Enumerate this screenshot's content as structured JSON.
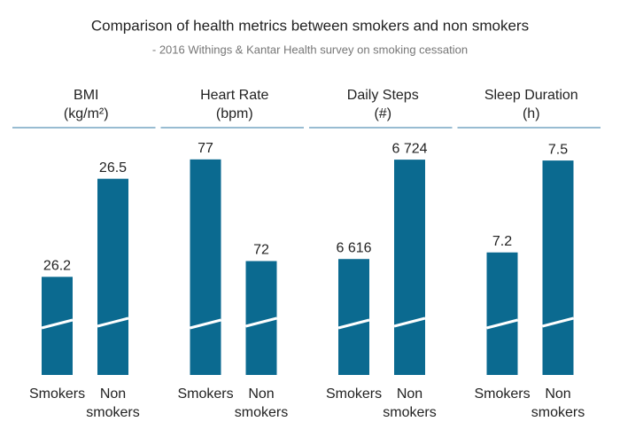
{
  "title": "Comparison of health metrics between smokers and non smokers",
  "subtitle": "- 2016 Withings & Kantar Health survey on smoking cessation",
  "chart_data": [
    {
      "type": "bar",
      "title": "BMI",
      "subtitle": "(kg/m²)",
      "categories": [
        "Smokers",
        "Non smokers"
      ],
      "values": [
        26.2,
        26.5
      ],
      "color": "#0b6a90",
      "ylim": [
        25.9,
        26.64
      ]
    },
    {
      "type": "bar",
      "title": "Heart Rate",
      "subtitle": "(bpm)",
      "categories": [
        "Smokers",
        "Non smokers"
      ],
      "values": [
        77,
        72
      ],
      "color": "#0b6a90",
      "ylim": [
        66.4,
        78.3
      ]
    },
    {
      "type": "bar",
      "title": "Daily Steps",
      "subtitle": "(#)",
      "categories": [
        "Smokers",
        "Non smokers"
      ],
      "values": [
        6616,
        6724
      ],
      "value_labels": [
        "6 616",
        "6 724"
      ],
      "color": "#0b6a90",
      "ylim": [
        6490,
        6753
      ]
    },
    {
      "type": "bar",
      "title": "Sleep Duration",
      "subtitle": "(h)",
      "categories": [
        "Smokers",
        "Non smokers"
      ],
      "values": [
        7.2,
        7.5
      ],
      "color": "#0b6a90",
      "ylim": [
        6.8,
        7.59
      ]
    }
  ]
}
